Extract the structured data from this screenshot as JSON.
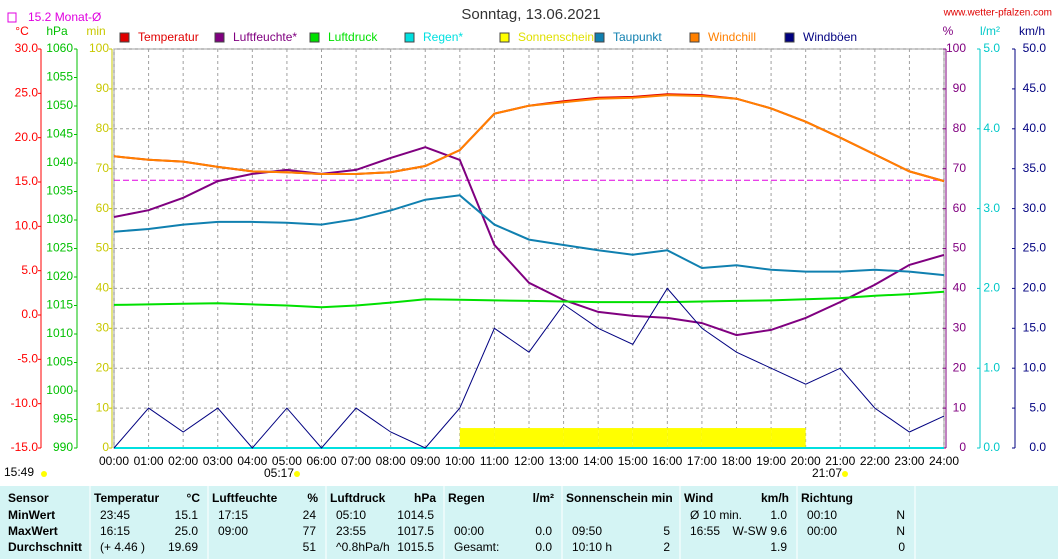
{
  "chart_data": {
    "type": "line",
    "title": "Sonntag, 13.06.2021",
    "site": "www.wetter-pfalzen.com",
    "reference": {
      "label": "15.2 Monat-Ø",
      "value": 15.2,
      "color": "#e000e0",
      "axis": 0
    },
    "time": "15:49",
    "sunrise": "05:17",
    "sunset": "21:07",
    "grid": true,
    "x": [
      0,
      1,
      2,
      3,
      4,
      5,
      6,
      7,
      8,
      9,
      10,
      11,
      12,
      13,
      14,
      15,
      16,
      17,
      18,
      19,
      20,
      21,
      22,
      23,
      24
    ],
    "xlim": [
      0,
      24
    ],
    "xticks": [
      {
        "value": 0,
        "label": "00:00"
      },
      {
        "value": 1,
        "label": "01:00"
      },
      {
        "value": 2,
        "label": "02:00"
      },
      {
        "value": 3,
        "label": "03:00"
      },
      {
        "value": 4,
        "label": "04:00"
      },
      {
        "value": 5,
        "label": "05:00"
      },
      {
        "value": 6,
        "label": "06:00"
      },
      {
        "value": 7,
        "label": "07:00"
      },
      {
        "value": 8,
        "label": "08:00"
      },
      {
        "value": 9,
        "label": "09:00"
      },
      {
        "value": 10,
        "label": "10:00"
      },
      {
        "value": 11,
        "label": "11:00"
      },
      {
        "value": 12,
        "label": "12:00"
      },
      {
        "value": 13,
        "label": "13:00"
      },
      {
        "value": 14,
        "label": "14:00"
      },
      {
        "value": 15,
        "label": "15:00"
      },
      {
        "value": 16,
        "label": "16:00"
      },
      {
        "value": 17,
        "label": "17:00"
      },
      {
        "value": 18,
        "label": "18:00"
      },
      {
        "value": 19,
        "label": "19:00"
      },
      {
        "value": 20,
        "label": "20:00"
      },
      {
        "value": 21,
        "label": "21:00"
      },
      {
        "value": 22,
        "label": "22:00"
      },
      {
        "value": 23,
        "label": "23:00"
      },
      {
        "value": 24,
        "label": "24:00"
      }
    ],
    "axes": [
      {
        "label": "°C",
        "color": "#ff0000",
        "lim": [
          -15,
          30
        ],
        "ticks": [
          {
            "value": 30,
            "label": "30.0"
          },
          {
            "value": 25,
            "label": "25.0"
          },
          {
            "value": 20,
            "label": "20.0"
          },
          {
            "value": 15,
            "label": "15.0"
          },
          {
            "value": 10,
            "label": "10.0"
          },
          {
            "value": 5,
            "label": "5.0"
          },
          {
            "value": 0,
            "label": "0.0"
          },
          {
            "value": -5,
            "label": "-5.0"
          },
          {
            "value": -10,
            "label": "-10.0"
          },
          {
            "value": -15,
            "label": "-15.0"
          }
        ]
      },
      {
        "label": "hPa",
        "color": "#00c000",
        "lim": [
          990,
          1060
        ],
        "ticks": [
          1060,
          1055,
          1050,
          1045,
          1040,
          1035,
          1030,
          1025,
          1020,
          1015,
          1010,
          1005,
          1000,
          995,
          990
        ]
      },
      {
        "label": "min",
        "color": "#c8c800",
        "lim": [
          0,
          100
        ],
        "ticks": [
          100,
          90,
          80,
          70,
          60,
          50,
          40,
          30,
          20,
          10,
          0
        ]
      },
      {
        "label": "%",
        "color": "#800080",
        "lim": [
          0,
          100
        ],
        "ticks": [
          100,
          90,
          80,
          70,
          60,
          50,
          40,
          30,
          20,
          10,
          0
        ]
      },
      {
        "label": "l/m²",
        "color": "#00c8c8",
        "lim": [
          0,
          5
        ],
        "ticks": [
          {
            "value": 5,
            "label": "5.0"
          },
          {
            "value": 4,
            "label": "4.0"
          },
          {
            "value": 3,
            "label": "3.0"
          },
          {
            "value": 2,
            "label": "2.0"
          },
          {
            "value": 1,
            "label": "1.0"
          },
          {
            "value": 0,
            "label": "0.0"
          }
        ]
      },
      {
        "label": "km/h",
        "color": "#000080",
        "lim": [
          0,
          50
        ],
        "ticks": [
          {
            "value": 50,
            "label": "50.0"
          },
          {
            "value": 45,
            "label": "45.0"
          },
          {
            "value": 40,
            "label": "40.0"
          },
          {
            "value": 35,
            "label": "35.0"
          },
          {
            "value": 30,
            "label": "30.0"
          },
          {
            "value": 25,
            "label": "25.0"
          },
          {
            "value": 20,
            "label": "20.0"
          },
          {
            "value": 15,
            "label": "15.0"
          },
          {
            "value": 10,
            "label": "10.0"
          },
          {
            "value": 5,
            "label": "5.0"
          },
          {
            "value": 0,
            "label": "0.0"
          }
        ]
      }
    ],
    "series": [
      {
        "name": "Temperatur",
        "color": "#e00000",
        "axis": 0,
        "kind": "line",
        "values": [
          17.9,
          17.5,
          17.3,
          16.7,
          16.2,
          16.1,
          15.9,
          15.9,
          16.1,
          16.8,
          18.6,
          22.7,
          23.6,
          24.1,
          24.5,
          24.6,
          24.9,
          24.8,
          24.4,
          23.3,
          21.8,
          20.0,
          18.1,
          16.2,
          15.1
        ]
      },
      {
        "name": "Luftfeuchte*",
        "color": "#800080",
        "axis": 3,
        "kind": "line",
        "values": [
          57.9,
          59.6,
          62.7,
          66.9,
          68.7,
          69.7,
          68.7,
          69.7,
          72.7,
          75.4,
          72.2,
          50.9,
          41.4,
          37.1,
          34.1,
          33.1,
          32.6,
          31.3,
          28.3,
          29.6,
          32.6,
          36.6,
          40.9,
          45.9,
          48.4
        ]
      },
      {
        "name": "Luftdruck",
        "color": "#00e000",
        "axis": 1,
        "kind": "line",
        "values": [
          1015.1,
          1015.2,
          1015.3,
          1015.4,
          1015.2,
          1015.0,
          1014.7,
          1015.0,
          1015.5,
          1016.1,
          1016.0,
          1015.9,
          1015.8,
          1015.7,
          1015.6,
          1015.6,
          1015.6,
          1015.7,
          1015.8,
          1015.9,
          1016.1,
          1016.3,
          1016.7,
          1017.0,
          1017.4
        ]
      },
      {
        "name": "Regen*",
        "color": "#00e0e0",
        "axis": 4,
        "kind": "line",
        "values": [
          0,
          0,
          0,
          0,
          0,
          0,
          0,
          0,
          0,
          0,
          0,
          0,
          0,
          0,
          0,
          0,
          0,
          0,
          0,
          0,
          0,
          0,
          0,
          0,
          0
        ]
      },
      {
        "name": "Sonnenschein",
        "color": "#ffff00",
        "axis": 2,
        "kind": "bars",
        "values": [
          0,
          0,
          0,
          0,
          0,
          0,
          0,
          0,
          0,
          0,
          5,
          5,
          5,
          5,
          5,
          5,
          5,
          5,
          5,
          5,
          0,
          0,
          0,
          0,
          0
        ]
      },
      {
        "name": "Taupunkt",
        "color": "#1080b0",
        "axis": 0,
        "kind": "line",
        "values": [
          9.4,
          9.7,
          10.2,
          10.5,
          10.5,
          10.4,
          10.2,
          10.8,
          11.8,
          13.0,
          13.5,
          10.2,
          8.5,
          7.9,
          7.3,
          6.8,
          7.3,
          5.3,
          5.6,
          5.1,
          4.9,
          4.9,
          5.1,
          4.9,
          4.5
        ]
      },
      {
        "name": "Windchill",
        "color": "#ff8000",
        "axis": 0,
        "kind": "line",
        "values": [
          17.9,
          17.5,
          17.3,
          16.7,
          16.2,
          16.1,
          15.9,
          15.9,
          16.1,
          16.8,
          18.6,
          22.7,
          23.6,
          24.0,
          24.4,
          24.5,
          24.8,
          24.7,
          24.4,
          23.3,
          21.8,
          20.0,
          18.1,
          16.2,
          15.1
        ]
      },
      {
        "name": "Windböen",
        "color": "#000080",
        "axis": 5,
        "kind": "line",
        "values": [
          0,
          5,
          2,
          5,
          0,
          5,
          0,
          5,
          2,
          0,
          5,
          15,
          12,
          18,
          15,
          13,
          20,
          15,
          12,
          10,
          8,
          10,
          5,
          2,
          4
        ]
      }
    ]
  },
  "table": {
    "headers": [
      [
        "Sensor"
      ],
      [
        "Temperatur",
        "°C"
      ],
      [
        "Luftfeuchte",
        "%"
      ],
      [
        "Luftdruck",
        "hPa"
      ],
      [
        "Regen",
        "l/m²"
      ],
      [
        "Sonnenschein min"
      ],
      [
        "Wind",
        "km/h"
      ],
      [
        "Richtung"
      ]
    ],
    "rows": [
      {
        "label": "MinWert",
        "cells": [
          "23:45",
          "15.1",
          "17:15",
          "24",
          "05:10",
          "1014.5",
          null,
          null,
          null,
          null,
          "Ø 10 min.",
          "1.0",
          "00:10",
          "N"
        ]
      },
      {
        "label": "MaxWert",
        "cells": [
          "16:15",
          "25.0",
          "09:00",
          "77",
          "23:55",
          "1017.5",
          "00:00",
          "0.0",
          "09:50",
          "5",
          "16:55",
          "W-SW 9.6",
          "00:00",
          "N"
        ]
      },
      {
        "label": "Durchschnitt",
        "cells": [
          "(+ 4.46 )",
          "19.69",
          null,
          "51",
          "^0.8hPa/h",
          "1015.5",
          "Gesamt:",
          "0.0",
          "10:10 h",
          "2",
          null,
          "1.9",
          null,
          "0"
        ]
      }
    ]
  }
}
